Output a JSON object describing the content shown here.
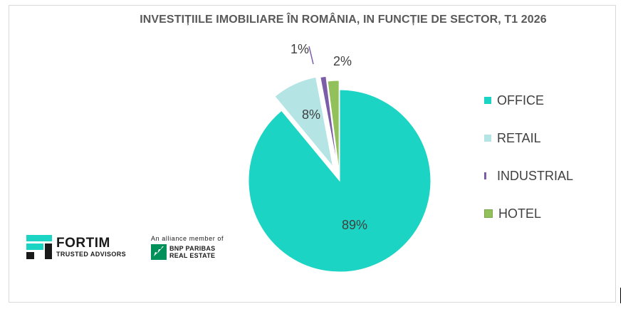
{
  "chart_data": {
    "type": "pie",
    "title": "INVESTIȚIILE IMOBILIARE ÎN ROMÂNIA, IN FUNCȚIE DE SECTOR, T1 2026",
    "slices": [
      {
        "label": "OFFICE",
        "value": 89,
        "value_label": "89%",
        "color": "#1bd4c3",
        "exploded": false
      },
      {
        "label": "RETAIL",
        "value": 8,
        "value_label": "8%",
        "color": "#b4e4e4",
        "exploded": true
      },
      {
        "label": "INDUSTRIAL",
        "value": 1,
        "value_label": "1%",
        "color": "#7b5ea7",
        "exploded": true
      },
      {
        "label": "HOTEL",
        "value": 2,
        "value_label": "2%",
        "color": "#92c05b",
        "exploded": true
      }
    ],
    "legend_position": "right"
  },
  "logos": {
    "fortim_name": "FORTIM",
    "fortim_tagline": "TRUSTED ADVISORS",
    "bnp_alliance": "An alliance member of",
    "bnp_line1": "BNP PARIBAS",
    "bnp_line2": "REAL ESTATE",
    "fortim_color": "#1bd4c3",
    "bnp_color": "#00915a"
  }
}
